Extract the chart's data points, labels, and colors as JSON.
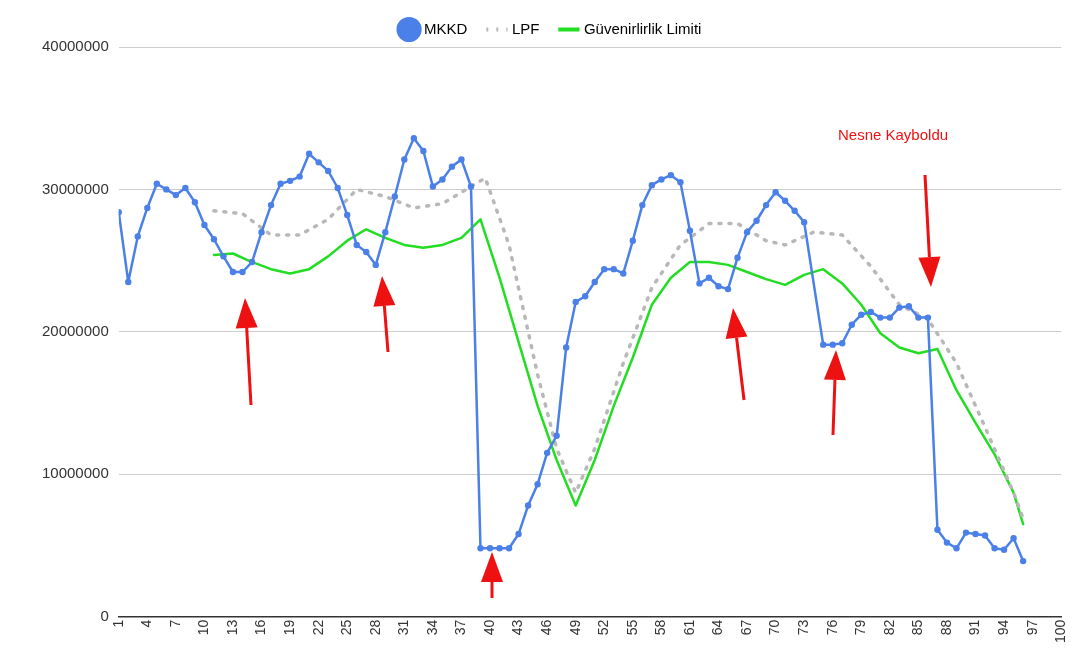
{
  "chart_data": {
    "type": "line",
    "annotations": [
      "Nesne Kayboldu"
    ],
    "xlim": [
      1,
      100
    ],
    "xticks": [
      1,
      4,
      7,
      10,
      13,
      16,
      19,
      22,
      25,
      28,
      31,
      34,
      37,
      40,
      43,
      46,
      49,
      52,
      55,
      58,
      61,
      64,
      67,
      70,
      73,
      76,
      79,
      82,
      85,
      88,
      91,
      94,
      97,
      100
    ],
    "ylim": [
      0,
      40000000
    ],
    "yticks": [
      0,
      10000000,
      20000000,
      30000000,
      40000000
    ],
    "grid": "y",
    "legend": "top",
    "series": [
      {
        "name": "MKKD",
        "color": "#4a80e8",
        "marker": "circle",
        "line_style": "solid",
        "x": [
          1,
          2,
          3,
          4,
          5,
          6,
          7,
          8,
          9,
          10,
          11,
          12,
          13,
          14,
          15,
          16,
          17,
          18,
          19,
          20,
          21,
          22,
          23,
          24,
          25,
          26,
          27,
          28,
          29,
          30,
          31,
          32,
          33,
          34,
          35,
          36,
          37,
          38,
          39,
          40,
          41,
          42,
          43,
          44,
          45,
          46,
          47,
          48,
          49,
          50,
          51,
          52,
          53,
          54,
          55,
          56,
          57,
          58,
          59,
          60,
          61,
          62,
          63,
          64,
          65,
          66,
          67,
          68,
          69,
          70,
          71,
          72,
          73,
          75,
          76,
          77,
          78,
          79,
          80,
          81,
          82,
          83,
          84,
          85,
          86,
          87,
          88,
          89,
          90,
          91,
          92,
          93,
          94,
          95,
          96
        ],
        "values": [
          28400000,
          23500000,
          26700000,
          28700000,
          30400000,
          30000000,
          29600000,
          30100000,
          29100000,
          27500000,
          26500000,
          25300000,
          24200000,
          24200000,
          24900000,
          27000000,
          28900000,
          30400000,
          30600000,
          30900000,
          32500000,
          31900000,
          31300000,
          30100000,
          28200000,
          26100000,
          25600000,
          24700000,
          27000000,
          29500000,
          32100000,
          33600000,
          32700000,
          30200000,
          30700000,
          31600000,
          32100000,
          30200000,
          4800000,
          4800000,
          4800000,
          4800000,
          5800000,
          7800000,
          9300000,
          11500000,
          12700000,
          18900000,
          22100000,
          22500000,
          23500000,
          24400000,
          24400000,
          24100000,
          26400000,
          28900000,
          30300000,
          30700000,
          31000000,
          30500000,
          27100000,
          23400000,
          23800000,
          23200000,
          23000000,
          25200000,
          27000000,
          27800000,
          28900000,
          29800000,
          29200000,
          28500000,
          27700000,
          19100000,
          19100000,
          19200000,
          20500000,
          21200000,
          21400000,
          21000000,
          21000000,
          21700000,
          21800000,
          21000000,
          21000000,
          6100000,
          5200000,
          4800000,
          5900000,
          5800000,
          5700000,
          4800000,
          4700000,
          5500000,
          3900000
        ]
      },
      {
        "name": "LPF",
        "color": "#b8b8b8",
        "marker": "none",
        "line_style": "dotted",
        "x": [
          11,
          14,
          17,
          20,
          23,
          26,
          29,
          32,
          35,
          38,
          39.5,
          42,
          45,
          47,
          49,
          51,
          54,
          57,
          60,
          63,
          66,
          69,
          71,
          74,
          77,
          80,
          83,
          86,
          89,
          92,
          95,
          96
        ],
        "values": [
          28500000,
          28300000,
          26800000,
          26800000,
          27900000,
          30000000,
          29500000,
          28700000,
          29000000,
          30200000,
          30800000,
          26100000,
          17000000,
          11800000,
          8700000,
          11800000,
          17800000,
          23100000,
          26100000,
          27600000,
          27600000,
          26400000,
          26100000,
          27000000,
          26800000,
          24600000,
          21900000,
          20900000,
          17800000,
          13300000,
          8700000,
          6900000
        ]
      },
      {
        "name": "Güvenirlirlik Limiti",
        "color": "#22dd22",
        "marker": "none",
        "line_style": "solid",
        "x": [
          11,
          13,
          15,
          17,
          19,
          21,
          23,
          25,
          27,
          29,
          31,
          33,
          35,
          37,
          39,
          41,
          43,
          45,
          47,
          49,
          51,
          53,
          55,
          57,
          59,
          61,
          63,
          65,
          67,
          69,
          71,
          73,
          75,
          77,
          79,
          81,
          83,
          85,
          87,
          89,
          91,
          93,
          95,
          96
        ],
        "values": [
          25400000,
          25500000,
          24900000,
          24400000,
          24100000,
          24400000,
          25300000,
          26400000,
          27200000,
          26600000,
          26100000,
          25900000,
          26100000,
          26600000,
          27900000,
          23800000,
          19300000,
          14800000,
          11000000,
          7800000,
          11000000,
          14800000,
          18200000,
          21900000,
          23800000,
          24900000,
          24900000,
          24700000,
          24200000,
          23700000,
          23300000,
          24000000,
          24400000,
          23400000,
          21900000,
          19900000,
          18900000,
          18500000,
          18800000,
          15900000,
          13600000,
          11400000,
          8700000,
          6500000
        ]
      }
    ]
  }
}
